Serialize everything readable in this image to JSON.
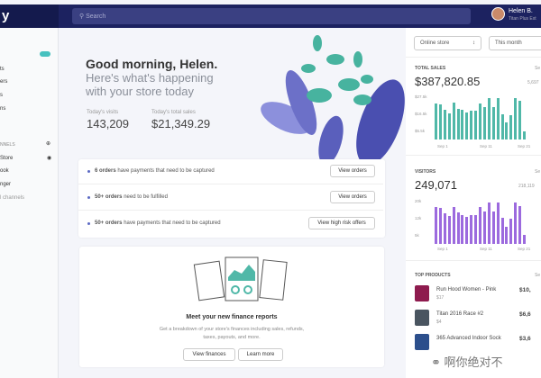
{
  "topbar": {
    "logo": "y",
    "search_placeholder": "Search",
    "user_name": "Helen B.",
    "user_store": "Titan Plus Ext"
  },
  "sidebar": {
    "badge": "",
    "items": [
      "ts",
      "ers",
      "s",
      "ns"
    ],
    "channels_header": "NNELS",
    "channels": [
      "Store",
      "ook",
      "nger",
      "l channels"
    ]
  },
  "greeting": {
    "title": "Good morning, Helen.",
    "subtitle_1": "Here's what's happening",
    "subtitle_2": "with your store today"
  },
  "stats": [
    {
      "label": "Today's visits",
      "value": "143,209"
    },
    {
      "label": "Today's total sales",
      "value": "$21,349.29"
    }
  ],
  "tasks": [
    {
      "bold": "6 orders",
      "text": " have payments that need to be captured",
      "button": "View orders"
    },
    {
      "bold": "50+ orders",
      "text": " need to be fulfilled",
      "button": "View orders"
    },
    {
      "bold": "50+ orders",
      "text": " have payments that need to be captured",
      "button": "View high risk offers"
    }
  ],
  "finance": {
    "title": "Meet your new finance reports",
    "desc_1": "Get a breakdown of your store's finances including sales, refunds,",
    "desc_2": "taxes, payouts, and more.",
    "btn1": "View finances",
    "btn2": "Learn more"
  },
  "filters": {
    "channel": "Online store",
    "period": "This month"
  },
  "total_sales": {
    "label": "TOTAL SALES",
    "value": "$387,820.85",
    "side": "5,697",
    "link": "Se",
    "yticks": [
      "$27.5k",
      "$16.5k",
      "$5.5k"
    ],
    "xticks": [
      "Sep 1",
      "Sep 11",
      "Sep 21"
    ],
    "color": "#50b8a8",
    "values": [
      23.5,
      22.5,
      19.5,
      17,
      24,
      20,
      19,
      17.5,
      18.5,
      18.5,
      23.5,
      21,
      27,
      21,
      27,
      16.5,
      11,
      16,
      27,
      25,
      5.5
    ]
  },
  "visitors": {
    "label": "VISITORS",
    "value": "249,071",
    "side": "218,119",
    "link": "Se",
    "yticks": [
      "20k",
      "12k",
      "5k"
    ],
    "xticks": [
      "Sep 1",
      "Sep 11",
      "Sep 21"
    ],
    "color": "#9c6ade",
    "values": [
      17,
      16.5,
      14,
      13,
      17,
      14.5,
      13.5,
      12.5,
      13.5,
      13.5,
      17,
      15,
      19,
      15,
      19,
      12,
      8,
      11.5,
      19,
      17.5,
      4
    ]
  },
  "top_products": {
    "label": "TOP PRODUCTS",
    "link": "Se",
    "items": [
      {
        "name": "Run Hood Women - Pink",
        "price": "$17",
        "value": "$10,",
        "color": "#8e1b4e"
      },
      {
        "name": "Titan 2016 Race #2",
        "price": "$4",
        "value": "$6,6",
        "color": "#4a5560"
      },
      {
        "name": "365 Advanced Indoor Sock",
        "price": "",
        "value": "$3,6",
        "color": "#2c4f8c"
      }
    ]
  },
  "watermark": "啊你绝对不"
}
